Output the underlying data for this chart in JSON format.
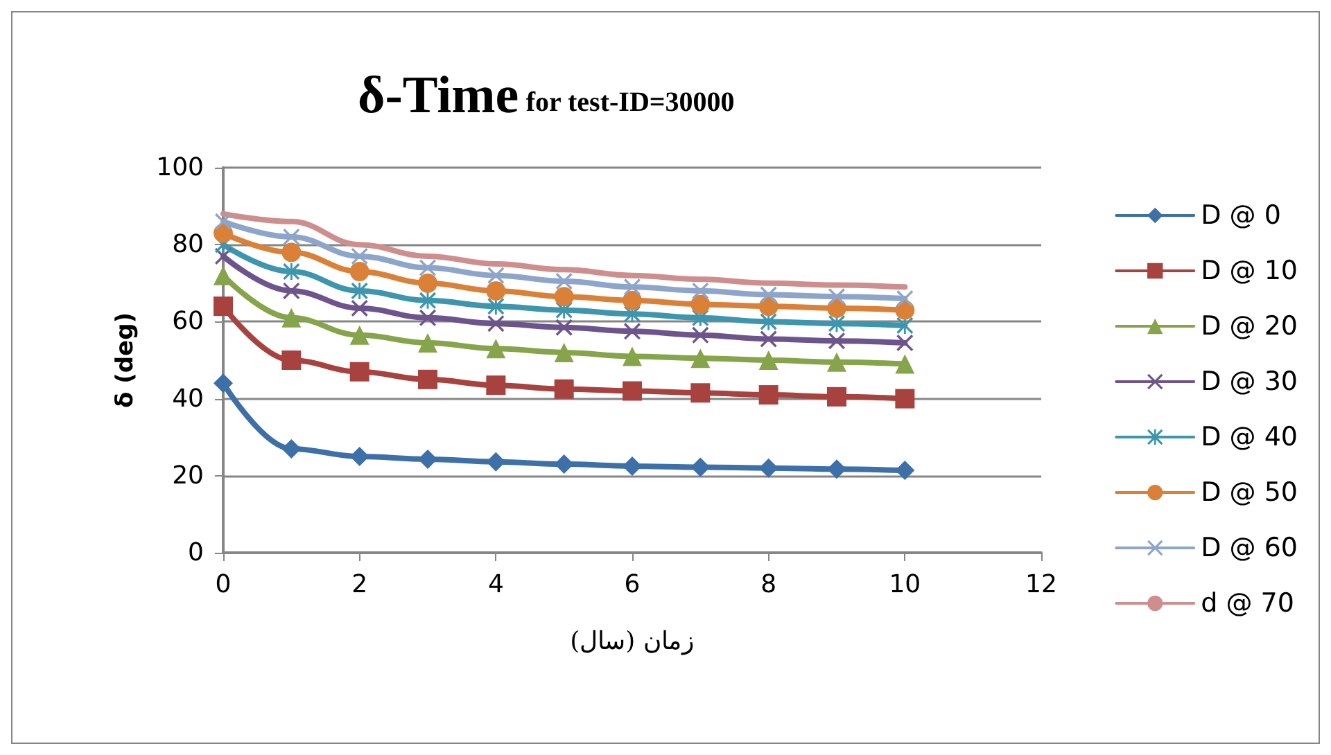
{
  "chart_data": {
    "type": "line",
    "title": "δ-Time",
    "subtitle": "for test-ID=30000",
    "xlabel": "زمان (سال)",
    "ylabel": "δ (deg)",
    "x": [
      0,
      1,
      2,
      3,
      4,
      5,
      6,
      7,
      8,
      9,
      10
    ],
    "series": [
      {
        "name": "D @ 0",
        "color": "#3d6fa8",
        "marker": "diamond",
        "values": [
          44,
          27,
          25,
          24.3,
          23.6,
          23,
          22.5,
          22.2,
          22,
          21.7,
          21.4
        ]
      },
      {
        "name": "D @ 10",
        "color": "#a8423f",
        "marker": "square",
        "values": [
          64,
          50,
          47,
          45,
          43.5,
          42.5,
          42,
          41.5,
          41,
          40.5,
          40
        ]
      },
      {
        "name": "D @ 20",
        "color": "#86a44a",
        "marker": "triangle",
        "values": [
          72,
          61,
          56.5,
          54.5,
          53,
          52,
          51,
          50.5,
          50,
          49.5,
          49
        ]
      },
      {
        "name": "D @ 30",
        "color": "#6e548d",
        "marker": "cross",
        "values": [
          77,
          68,
          63.5,
          61,
          59.5,
          58.5,
          57.5,
          56.5,
          55.5,
          55,
          54.5
        ]
      },
      {
        "name": "D @ 40",
        "color": "#3d96ae",
        "marker": "star",
        "values": [
          80,
          73,
          68,
          65.5,
          64,
          63,
          62,
          61,
          60,
          59.5,
          59
        ]
      },
      {
        "name": "D @ 50",
        "color": "#da8137",
        "marker": "circle",
        "values": [
          83,
          78,
          73,
          70,
          68,
          66.5,
          65.5,
          64.5,
          64,
          63.5,
          63
        ]
      },
      {
        "name": "D @ 60",
        "color": "#8ea5cb",
        "marker": "cross",
        "values": [
          86,
          82,
          77,
          74,
          72,
          70.5,
          69,
          68,
          67,
          66.5,
          66
        ]
      },
      {
        "name": "d @ 70",
        "color": "#ce8e8d",
        "marker": "none",
        "values": [
          88,
          86,
          80,
          77,
          75,
          73.5,
          72,
          71,
          70,
          69.5,
          69
        ]
      }
    ],
    "xlim": [
      0,
      12
    ],
    "xticks": [
      0,
      2,
      4,
      6,
      8,
      10,
      12
    ],
    "ylim": [
      0,
      100
    ],
    "yticks": [
      0,
      20,
      40,
      60,
      80,
      100
    ],
    "grid": "y",
    "legend": "right",
    "line_style": "solid"
  }
}
